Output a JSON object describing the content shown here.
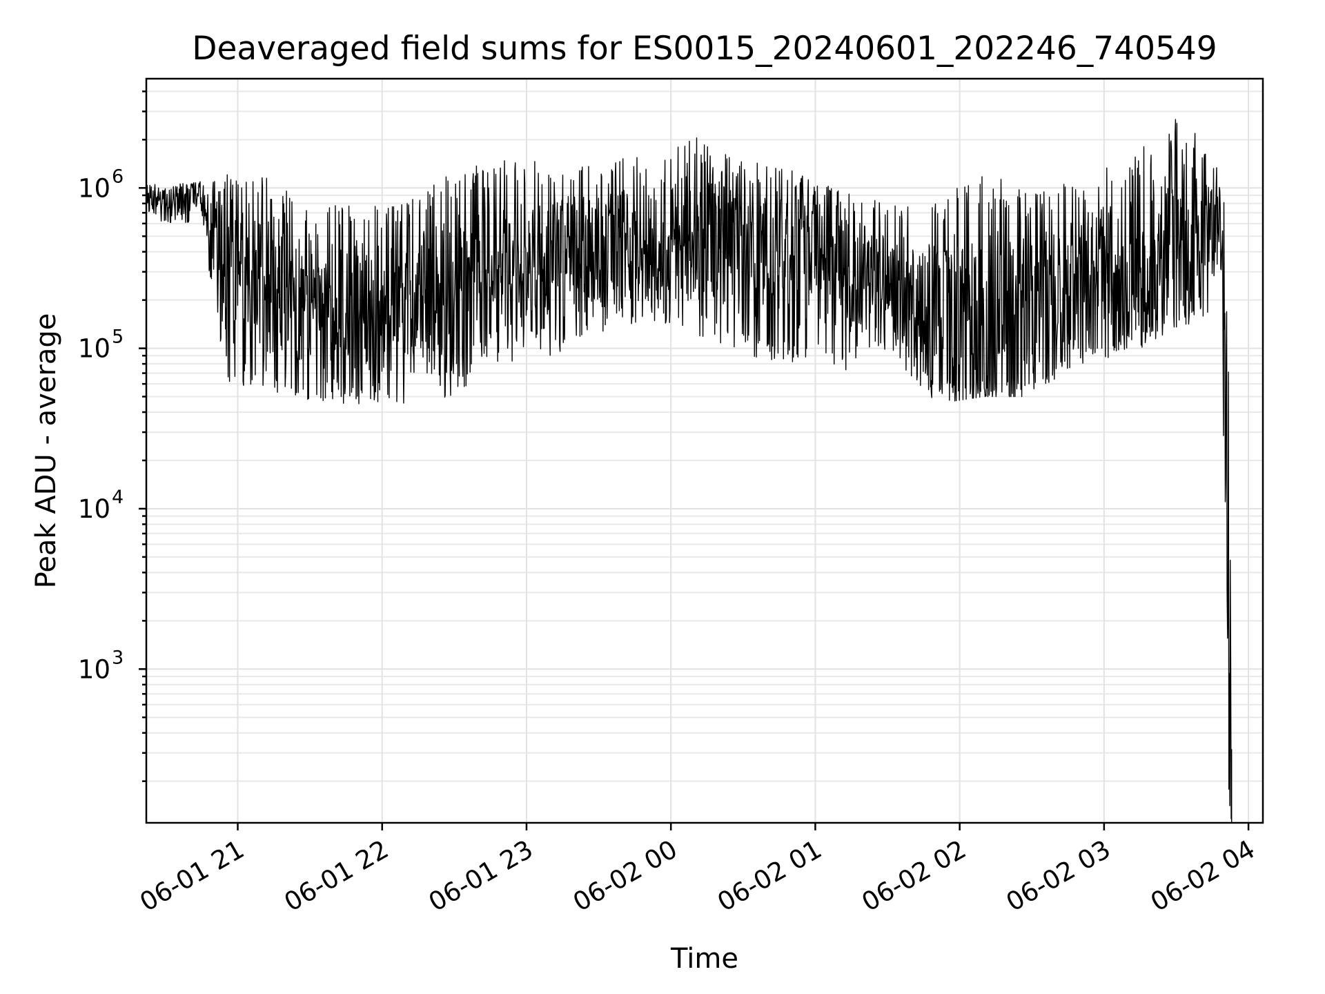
{
  "chart_data": {
    "type": "line",
    "title": "Deaveraged field sums for ES0015_20240601_202246_740549",
    "xlabel": "Time",
    "ylabel": "Peak ADU - average",
    "yscale": "log",
    "ylim": [
      110,
      4800000
    ],
    "xlim": [
      "2024-06-01 20:22",
      "2024-06-02 04:06"
    ],
    "x_ticks": [
      {
        "t": "2024-06-01 21:00",
        "label": "06-01 21"
      },
      {
        "t": "2024-06-01 22:00",
        "label": "06-01 22"
      },
      {
        "t": "2024-06-01 23:00",
        "label": "06-01 23"
      },
      {
        "t": "2024-06-02 00:00",
        "label": "06-02 00"
      },
      {
        "t": "2024-06-02 01:00",
        "label": "06-02 01"
      },
      {
        "t": "2024-06-02 02:00",
        "label": "06-02 02"
      },
      {
        "t": "2024-06-02 03:00",
        "label": "06-02 03"
      },
      {
        "t": "2024-06-02 04:00",
        "label": "06-02 04"
      }
    ],
    "y_ticks": [
      {
        "value": 1000,
        "base": "10",
        "exp": "3"
      },
      {
        "value": 10000,
        "base": "10",
        "exp": "4"
      },
      {
        "value": 100000,
        "base": "10",
        "exp": "5"
      },
      {
        "value": 1000000,
        "base": "10",
        "exp": "6"
      }
    ],
    "grid": true,
    "line_color": "#000000",
    "series": [
      {
        "x": [
          "2024-06-01 20:22",
          "2024-06-01 20:30",
          "2024-06-01 20:40",
          "2024-06-01 20:45",
          "2024-06-01 20:48",
          "2024-06-01 20:55",
          "2024-06-01 21:10",
          "2024-06-01 21:30",
          "2024-06-01 21:50",
          "2024-06-01 22:10",
          "2024-06-01 22:30",
          "2024-06-01 22:50",
          "2024-06-01 23:10",
          "2024-06-01 23:30",
          "2024-06-01 23:50",
          "2024-06-02 00:10",
          "2024-06-02 00:30",
          "2024-06-02 00:50",
          "2024-06-02 01:10",
          "2024-06-02 01:30",
          "2024-06-02 01:50",
          "2024-06-02 02:10",
          "2024-06-02 02:30",
          "2024-06-02 02:50",
          "2024-06-02 03:10",
          "2024-06-02 03:30",
          "2024-06-02 03:40",
          "2024-06-02 03:48",
          "2024-06-02 03:50",
          "2024-06-02 03:51",
          "2024-06-02 03:52",
          "2024-06-02 03:53"
        ],
        "y": [
          900000,
          800000,
          850000,
          900000,
          600000,
          350000,
          250000,
          200000,
          180000,
          180000,
          220000,
          280000,
          350000,
          400000,
          450000,
          500000,
          450000,
          350000,
          300000,
          280000,
          150000,
          130000,
          150000,
          250000,
          300000,
          400000,
          500000,
          450000,
          100000,
          10000,
          2000,
          110
        ],
        "min": [
          700000,
          600000,
          600000,
          700000,
          300000,
          60000,
          50000,
          45000,
          45000,
          45000,
          50000,
          80000,
          90000,
          120000,
          150000,
          120000,
          90000,
          80000,
          70000,
          90000,
          45000,
          50000,
          50000,
          80000,
          90000,
          120000,
          150000,
          120000,
          20000,
          4000,
          110,
          110
        ],
        "max": [
          1100000,
          1000000,
          1100000,
          1100000,
          1000000,
          1500000,
          1200000,
          800000,
          800000,
          800000,
          1300000,
          1500000,
          1500000,
          1400000,
          1700000,
          2100000,
          1500000,
          1300000,
          1000000,
          800000,
          900000,
          1300000,
          900000,
          1200000,
          1500000,
          3000000,
          2100000,
          1500000,
          900000,
          200000,
          60000,
          600
        ]
      }
    ]
  }
}
